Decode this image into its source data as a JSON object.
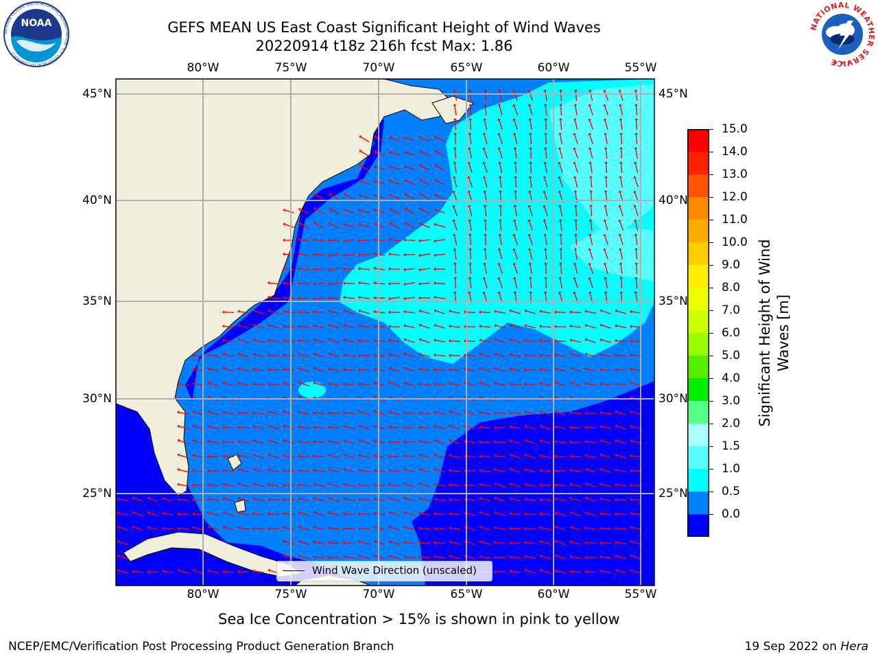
{
  "title": {
    "line1": "GEFS MEAN US East Coast Significant Height of Wind Waves",
    "line2": "20220914 t18z 216h fcst   Max: 1.86"
  },
  "axes": {
    "lon_ticks": [
      "80°W",
      "75°W",
      "70°W",
      "65°W",
      "60°W",
      "55°W"
    ],
    "lat_ticks": [
      "45°N",
      "40°N",
      "35°N",
      "30°N",
      "25°N"
    ]
  },
  "legend": {
    "label": "Wind Wave Direction (unscaled)"
  },
  "colorbar": {
    "title": "Significant Height of Wind Waves [m]",
    "ticks": [
      "15.0",
      "14.0",
      "13.0",
      "12.0",
      "11.0",
      "10.0",
      "9.0",
      "8.0",
      "7.0",
      "6.0",
      "5.0",
      "4.0",
      "3.0",
      "2.0",
      "1.5",
      "1.0",
      "0.5",
      "0.0"
    ],
    "colors": [
      "#ff0000",
      "#ff2200",
      "#ff5500",
      "#ff8800",
      "#ffaa00",
      "#ffcc00",
      "#ffee00",
      "#eeff00",
      "#ccff00",
      "#99ff00",
      "#55ee00",
      "#00ee00",
      "#55ff88",
      "#aaffff",
      "#55ffff",
      "#00ffff",
      "#0080ff",
      "#0000ff"
    ]
  },
  "map_colors": {
    "land": "#efefdb",
    "grid": "#b0b0b0",
    "arrow": "#ff0000",
    "band_0_0p5": "#0000ff",
    "band_0p5_1": "#0080ff",
    "band_1_1p5": "#00ffff",
    "band_1p5_2": "#55ffff"
  },
  "note": "Sea Ice Concentration > 15% is shown in pink to yellow",
  "footer": {
    "left": "NCEP/EMC/Verification Post Processing Product Generation Branch",
    "right_date": "19 Sep 2022 on",
    "right_host": "Hera"
  },
  "logos": {
    "left_text": "NOAA",
    "left_ring": "NATIONAL OCEANIC AND ATMOSPHERIC ADMINISTRATION · U.S. DEPARTMENT OF COMMERCE",
    "right_ring": "NATIONAL WEATHER SERVICE"
  }
}
